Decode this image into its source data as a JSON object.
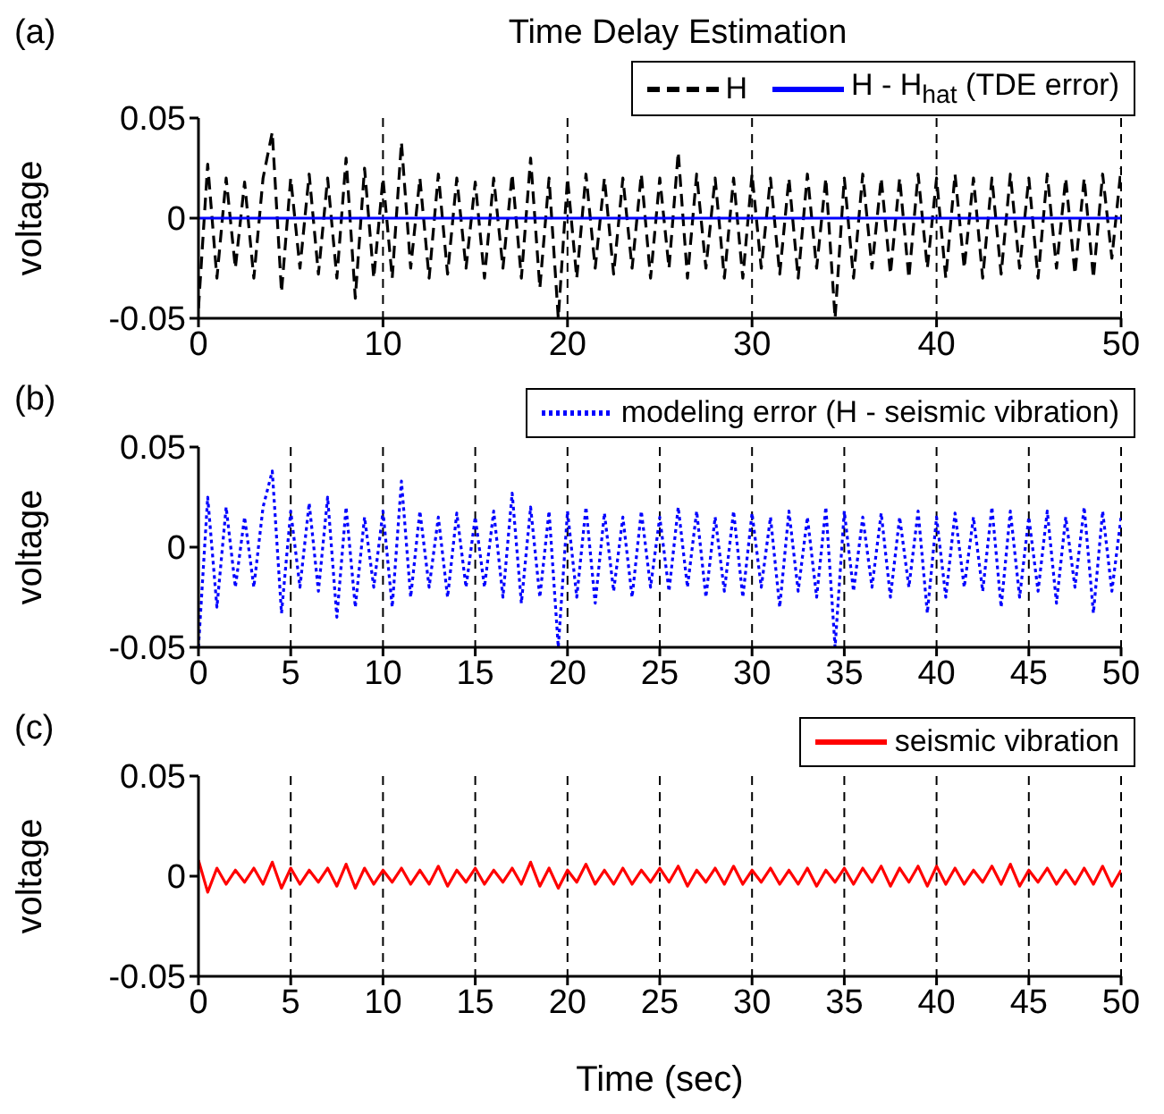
{
  "chart_data": [
    {
      "type": "line",
      "title": "Time Delay Estimation",
      "annotations": [
        "(a)"
      ],
      "ylabel": "voltage",
      "xlim": [
        0,
        50
      ],
      "xticks": [
        0,
        10,
        20,
        30,
        40,
        50
      ],
      "ylim": [
        -0.05,
        0.05
      ],
      "yticks": [
        -0.05,
        0,
        0.05
      ],
      "grid": "x",
      "legend": "top right",
      "x": [
        0,
        0.5,
        1,
        1.5,
        2,
        2.5,
        3,
        3.5,
        4,
        4.5,
        5,
        5.5,
        6,
        6.5,
        7,
        7.5,
        8,
        8.5,
        9,
        9.5,
        10,
        10.5,
        11,
        11.5,
        12,
        12.5,
        13,
        13.5,
        14,
        14.5,
        15,
        15.5,
        16,
        16.5,
        17,
        17.5,
        18,
        18.5,
        19,
        19.5,
        20,
        20.5,
        21,
        21.5,
        22,
        22.5,
        23,
        23.5,
        24,
        24.5,
        25,
        25.5,
        26,
        26.5,
        27,
        27.5,
        28,
        28.5,
        29,
        29.5,
        30,
        30.5,
        31,
        31.5,
        32,
        32.5,
        33,
        33.5,
        34,
        34.5,
        35,
        35.5,
        36,
        36.5,
        37,
        37.5,
        38,
        38.5,
        39,
        39.5,
        40,
        40.5,
        41,
        41.5,
        42,
        42.5,
        43,
        43.5,
        44,
        44.5,
        45,
        45.5,
        46,
        46.5,
        47,
        47.5,
        48,
        48.5,
        49,
        49.5,
        50
      ],
      "series": [
        {
          "name": "H",
          "color": "#000000",
          "line_style": "dashed",
          "values": [
            -0.045,
            0.027,
            -0.03,
            0.02,
            -0.025,
            0.018,
            -0.03,
            0.02,
            0.043,
            -0.037,
            0.02,
            -0.025,
            0.022,
            -0.028,
            0.02,
            -0.03,
            0.03,
            -0.04,
            0.025,
            -0.03,
            0.02,
            -0.03,
            0.038,
            -0.025,
            0.02,
            -0.03,
            0.022,
            -0.028,
            0.02,
            -0.025,
            0.018,
            -0.03,
            0.02,
            -0.025,
            0.022,
            -0.03,
            0.03,
            -0.035,
            0.02,
            -0.05,
            0.02,
            -0.03,
            0.022,
            -0.025,
            0.02,
            -0.028,
            0.02,
            -0.025,
            0.022,
            -0.03,
            0.02,
            -0.025,
            0.033,
            -0.03,
            0.022,
            -0.025,
            0.02,
            -0.03,
            0.02,
            -0.03,
            0.022,
            -0.025,
            0.02,
            -0.028,
            0.02,
            -0.03,
            0.022,
            -0.025,
            0.02,
            -0.05,
            0.02,
            -0.03,
            0.022,
            -0.025,
            0.02,
            -0.028,
            0.02,
            -0.03,
            0.022,
            -0.025,
            0.02,
            -0.03,
            0.022,
            -0.025,
            0.02,
            -0.03,
            0.02,
            -0.028,
            0.022,
            -0.025,
            0.02,
            -0.03,
            0.022,
            -0.025,
            0.02,
            -0.028,
            0.02,
            -0.03,
            0.022,
            -0.02,
            0.025
          ]
        },
        {
          "name": "H - H$_{hat}$ (TDE error)",
          "color": "#0000ff",
          "line_style": "solid",
          "x": [
            0,
            50
          ],
          "values": [
            0,
            0
          ]
        }
      ]
    },
    {
      "type": "line",
      "annotations": [
        "(b)"
      ],
      "ylabel": "voltage",
      "xlim": [
        0,
        50
      ],
      "xticks": [
        0,
        5,
        10,
        15,
        20,
        25,
        30,
        35,
        40,
        45,
        50
      ],
      "ylim": [
        -0.05,
        0.05
      ],
      "yticks": [
        -0.05,
        0,
        0.05
      ],
      "grid": "x",
      "legend": "top right",
      "x": [
        0,
        0.5,
        1,
        1.5,
        2,
        2.5,
        3,
        3.5,
        4,
        4.5,
        5,
        5.5,
        6,
        6.5,
        7,
        7.5,
        8,
        8.5,
        9,
        9.5,
        10,
        10.5,
        11,
        11.5,
        12,
        12.5,
        13,
        13.5,
        14,
        14.5,
        15,
        15.5,
        16,
        16.5,
        17,
        17.5,
        18,
        18.5,
        19,
        19.5,
        20,
        20.5,
        21,
        21.5,
        22,
        22.5,
        23,
        23.5,
        24,
        24.5,
        25,
        25.5,
        26,
        26.5,
        27,
        27.5,
        28,
        28.5,
        29,
        29.5,
        30,
        30.5,
        31,
        31.5,
        32,
        32.5,
        33,
        33.5,
        34,
        34.5,
        35,
        35.5,
        36,
        36.5,
        37,
        37.5,
        38,
        38.5,
        39,
        39.5,
        40,
        40.5,
        41,
        41.5,
        42,
        42.5,
        43,
        43.5,
        44,
        44.5,
        45,
        45.5,
        46,
        46.5,
        47,
        47.5,
        48,
        48.5,
        49,
        49.5,
        50
      ],
      "series": [
        {
          "name": "modeling error (H - seismic vibration)",
          "color": "#0000ff",
          "line_style": "dotted",
          "values": [
            -0.05,
            0.025,
            -0.03,
            0.02,
            -0.02,
            0.015,
            -0.02,
            0.02,
            0.038,
            -0.033,
            0.018,
            -0.02,
            0.022,
            -0.022,
            0.025,
            -0.035,
            0.02,
            -0.03,
            0.015,
            -0.02,
            0.018,
            -0.03,
            0.033,
            -0.025,
            0.018,
            -0.02,
            0.015,
            -0.025,
            0.017,
            -0.02,
            0.015,
            -0.02,
            0.018,
            -0.025,
            0.027,
            -0.028,
            0.02,
            -0.025,
            0.018,
            -0.05,
            0.018,
            -0.025,
            0.02,
            -0.028,
            0.017,
            -0.022,
            0.015,
            -0.025,
            0.018,
            -0.02,
            0.015,
            -0.022,
            0.02,
            -0.02,
            0.018,
            -0.025,
            0.015,
            -0.022,
            0.018,
            -0.025,
            0.017,
            -0.02,
            0.015,
            -0.03,
            0.018,
            -0.022,
            0.015,
            -0.025,
            0.02,
            -0.05,
            0.018,
            -0.022,
            0.015,
            -0.02,
            0.017,
            -0.025,
            0.015,
            -0.02,
            0.018,
            -0.033,
            0.015,
            -0.025,
            0.017,
            -0.02,
            0.015,
            -0.022,
            0.02,
            -0.03,
            0.018,
            -0.025,
            0.015,
            -0.022,
            0.018,
            -0.028,
            0.015,
            -0.02,
            0.02,
            -0.033,
            0.018,
            -0.022,
            0.015
          ]
        }
      ]
    },
    {
      "type": "line",
      "annotations": [
        "(c)"
      ],
      "xlabel": "Time (sec)",
      "ylabel": "voltage",
      "xlim": [
        0,
        50
      ],
      "xticks": [
        0,
        5,
        10,
        15,
        20,
        25,
        30,
        35,
        40,
        45,
        50
      ],
      "ylim": [
        -0.05,
        0.05
      ],
      "yticks": [
        -0.05,
        0,
        0.05
      ],
      "grid": "x",
      "legend": "top right",
      "x": [
        0,
        0.5,
        1,
        1.5,
        2,
        2.5,
        3,
        3.5,
        4,
        4.5,
        5,
        5.5,
        6,
        6.5,
        7,
        7.5,
        8,
        8.5,
        9,
        9.5,
        10,
        10.5,
        11,
        11.5,
        12,
        12.5,
        13,
        13.5,
        14,
        14.5,
        15,
        15.5,
        16,
        16.5,
        17,
        17.5,
        18,
        18.5,
        19,
        19.5,
        20,
        20.5,
        21,
        21.5,
        22,
        22.5,
        23,
        23.5,
        24,
        24.5,
        25,
        25.5,
        26,
        26.5,
        27,
        27.5,
        28,
        28.5,
        29,
        29.5,
        30,
        30.5,
        31,
        31.5,
        32,
        32.5,
        33,
        33.5,
        34,
        34.5,
        35,
        35.5,
        36,
        36.5,
        37,
        37.5,
        38,
        38.5,
        39,
        39.5,
        40,
        40.5,
        41,
        41.5,
        42,
        42.5,
        43,
        43.5,
        44,
        44.5,
        45,
        45.5,
        46,
        46.5,
        47,
        47.5,
        48,
        48.5,
        49,
        49.5,
        50
      ],
      "series": [
        {
          "name": "seismic vibration",
          "color": "#ff0000",
          "line_style": "solid",
          "values": [
            0.008,
            -0.008,
            0.004,
            -0.004,
            0.003,
            -0.003,
            0.004,
            -0.004,
            0.007,
            -0.006,
            0.004,
            -0.004,
            0.003,
            -0.003,
            0.004,
            -0.005,
            0.006,
            -0.006,
            0.004,
            -0.004,
            0.003,
            -0.003,
            0.004,
            -0.004,
            0.003,
            -0.004,
            0.005,
            -0.005,
            0.003,
            -0.003,
            0.004,
            -0.004,
            0.003,
            -0.003,
            0.004,
            -0.004,
            0.007,
            -0.005,
            0.004,
            -0.006,
            0.003,
            -0.003,
            0.006,
            -0.004,
            0.003,
            -0.004,
            0.004,
            -0.004,
            0.003,
            -0.003,
            0.004,
            -0.003,
            0.005,
            -0.005,
            0.003,
            -0.003,
            0.004,
            -0.004,
            0.005,
            -0.004,
            0.003,
            -0.003,
            0.004,
            -0.004,
            0.003,
            -0.004,
            0.004,
            -0.005,
            0.003,
            -0.003,
            0.004,
            -0.004,
            0.004,
            -0.003,
            0.005,
            -0.005,
            0.004,
            -0.003,
            0.005,
            -0.005,
            0.005,
            -0.004,
            0.004,
            -0.004,
            0.003,
            -0.003,
            0.005,
            -0.004,
            0.006,
            -0.005,
            0.003,
            -0.003,
            0.004,
            -0.004,
            0.003,
            -0.004,
            0.004,
            -0.004,
            0.005,
            -0.005,
            0.003
          ]
        }
      ]
    }
  ]
}
